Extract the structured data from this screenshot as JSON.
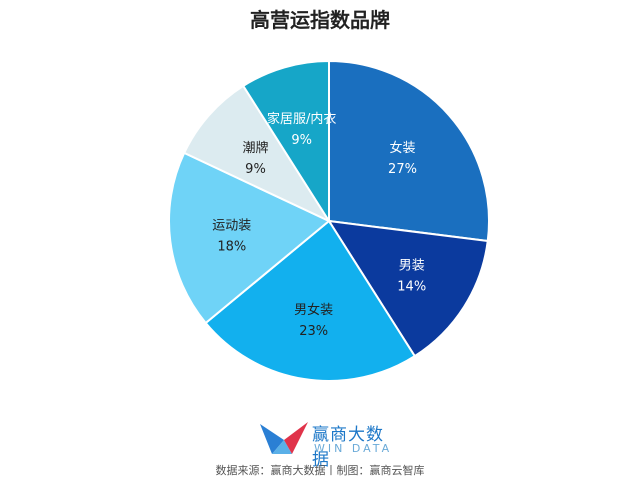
{
  "chart_data": {
    "type": "pie",
    "title": "高营运指数品牌",
    "slices": [
      {
        "label": "女装",
        "value": 27,
        "percent_label": "27%",
        "color": "#1a6fbf",
        "text_color": "#ffffff"
      },
      {
        "label": "男装",
        "value": 14,
        "percent_label": "14%",
        "color": "#0b3a9e",
        "text_color": "#ffffff"
      },
      {
        "label": "男女装",
        "value": 23,
        "percent_label": "23%",
        "color": "#12b0ee",
        "text_color": "#222222"
      },
      {
        "label": "运动装",
        "value": 18,
        "percent_label": "18%",
        "color": "#6fd3f7",
        "text_color": "#222222"
      },
      {
        "label": "潮牌",
        "value": 9,
        "percent_label": "9%",
        "color": "#dcebf0",
        "text_color": "#222222"
      },
      {
        "label": "家居服/内衣",
        "value": 9,
        "percent_label": "9%",
        "color": "#16a6c8",
        "text_color": "#ffffff"
      }
    ],
    "start_angle_deg": 0,
    "direction": "clockwise",
    "legend": "none"
  },
  "branding": {
    "logo_name": "赢商大数据",
    "logo_en": "WIN DATA",
    "source_text": "数据来源：赢商大数据丨制图：赢商云智库"
  }
}
